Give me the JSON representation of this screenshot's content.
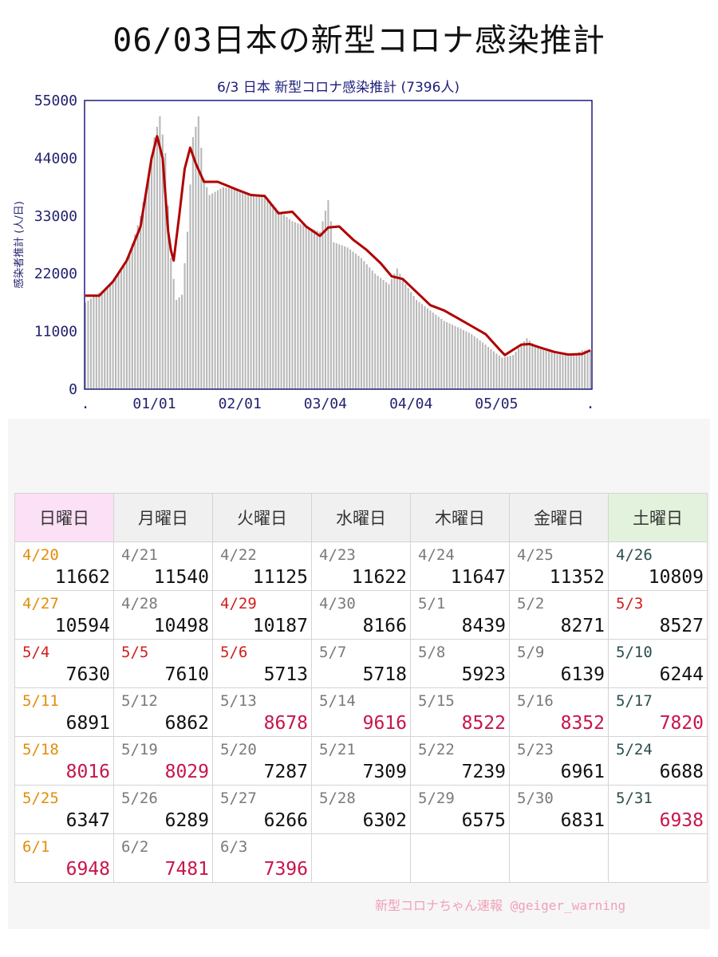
{
  "main_title": "06/03日本の新型コロナ感染推計",
  "chart_data": {
    "type": "bar",
    "title": "6/3 日本 新型コロナ感染推計 (7396人)",
    "xlabel": "",
    "ylabel": "感染者推計 (人/日)",
    "ylim": [
      0,
      55000
    ],
    "y_ticks": [
      0,
      11000,
      22000,
      33000,
      44000,
      55000
    ],
    "x_ticks": [
      {
        "label": ".",
        "day": 0
      },
      {
        "label": "01/01",
        "day": 25
      },
      {
        "label": "02/01",
        "day": 56
      },
      {
        "label": "03/04",
        "day": 87
      },
      {
        "label": "04/04",
        "day": 118
      },
      {
        "label": "05/05",
        "day": 149
      },
      {
        "label": ".",
        "day": 183
      }
    ],
    "grid": false,
    "colors": {
      "bars": "#b8b8b8",
      "line": "#b00000",
      "frame": "#1d1d7a"
    },
    "series": [
      {
        "name": "",
        "type": "bar",
        "points": [
          [
            0,
            16500
          ],
          [
            4,
            18000
          ],
          [
            8,
            19500
          ],
          [
            12,
            22000
          ],
          [
            16,
            26000
          ],
          [
            20,
            33000
          ],
          [
            23,
            41000
          ],
          [
            25,
            48000
          ],
          [
            27,
            52000
          ],
          [
            29,
            45000
          ],
          [
            31,
            25000
          ],
          [
            33,
            17000
          ],
          [
            35,
            18000
          ],
          [
            37,
            30000
          ],
          [
            39,
            48000
          ],
          [
            41,
            52000
          ],
          [
            43,
            40000
          ],
          [
            45,
            37000
          ],
          [
            50,
            38500
          ],
          [
            55,
            38000
          ],
          [
            60,
            37000
          ],
          [
            65,
            37000
          ],
          [
            70,
            34000
          ],
          [
            75,
            32000
          ],
          [
            80,
            31000
          ],
          [
            85,
            30000
          ],
          [
            88,
            36000
          ],
          [
            90,
            28000
          ],
          [
            95,
            27000
          ],
          [
            100,
            25000
          ],
          [
            105,
            22000
          ],
          [
            110,
            20000
          ],
          [
            113,
            23000
          ],
          [
            116,
            20000
          ],
          [
            120,
            17000
          ],
          [
            125,
            15000
          ],
          [
            130,
            13000
          ],
          [
            135,
            11800
          ],
          [
            140,
            10500
          ],
          [
            145,
            8500
          ],
          [
            148,
            7200
          ],
          [
            151,
            6000
          ],
          [
            155,
            6500
          ],
          [
            158,
            8500
          ],
          [
            160,
            9700
          ],
          [
            163,
            8300
          ],
          [
            167,
            7600
          ],
          [
            171,
            6700
          ],
          [
            175,
            6300
          ],
          [
            178,
            6800
          ],
          [
            180,
            7400
          ],
          [
            183,
            7396
          ]
        ]
      },
      {
        "name": "",
        "type": "line",
        "points": [
          [
            0,
            17800
          ],
          [
            5,
            17800
          ],
          [
            10,
            20500
          ],
          [
            15,
            24500
          ],
          [
            20,
            31000
          ],
          [
            24,
            44000
          ],
          [
            26,
            48200
          ],
          [
            28,
            44000
          ],
          [
            30,
            30000
          ],
          [
            31,
            26500
          ],
          [
            32,
            24500
          ],
          [
            34,
            33000
          ],
          [
            36,
            42000
          ],
          [
            38,
            46000
          ],
          [
            40,
            43000
          ],
          [
            43,
            39500
          ],
          [
            48,
            39500
          ],
          [
            55,
            38000
          ],
          [
            60,
            37000
          ],
          [
            65,
            36800
          ],
          [
            70,
            33500
          ],
          [
            75,
            33800
          ],
          [
            80,
            31000
          ],
          [
            85,
            29200
          ],
          [
            88,
            30800
          ],
          [
            92,
            31000
          ],
          [
            97,
            28500
          ],
          [
            102,
            26500
          ],
          [
            107,
            24000
          ],
          [
            111,
            21500
          ],
          [
            115,
            21000
          ],
          [
            120,
            18500
          ],
          [
            125,
            16000
          ],
          [
            130,
            15000
          ],
          [
            135,
            13500
          ],
          [
            140,
            12000
          ],
          [
            145,
            10500
          ],
          [
            150,
            7600
          ],
          [
            152,
            6500
          ],
          [
            155,
            7500
          ],
          [
            158,
            8500
          ],
          [
            161,
            8600
          ],
          [
            165,
            7900
          ],
          [
            170,
            7100
          ],
          [
            175,
            6600
          ],
          [
            180,
            6700
          ],
          [
            183,
            7396
          ]
        ]
      }
    ]
  },
  "calendar": {
    "headers": [
      "日曜日",
      "月曜日",
      "火曜日",
      "水曜日",
      "木曜日",
      "金曜日",
      "土曜日"
    ],
    "rows": [
      [
        {
          "date": "4/20",
          "value": "11662",
          "dc": "sun"
        },
        {
          "date": "4/21",
          "value": "11540"
        },
        {
          "date": "4/22",
          "value": "11125"
        },
        {
          "date": "4/23",
          "value": "11622"
        },
        {
          "date": "4/24",
          "value": "11647"
        },
        {
          "date": "4/25",
          "value": "11352"
        },
        {
          "date": "4/26",
          "value": "10809",
          "dc": "sat"
        }
      ],
      [
        {
          "date": "4/27",
          "value": "10594",
          "dc": "sun"
        },
        {
          "date": "4/28",
          "value": "10498"
        },
        {
          "date": "4/29",
          "value": "10187",
          "dc": "hol"
        },
        {
          "date": "4/30",
          "value": "8166"
        },
        {
          "date": "5/1",
          "value": "8439"
        },
        {
          "date": "5/2",
          "value": "8271"
        },
        {
          "date": "5/3",
          "value": "8527",
          "dc": "hol"
        }
      ],
      [
        {
          "date": "5/4",
          "value": "7630",
          "dc": "hol"
        },
        {
          "date": "5/5",
          "value": "7610",
          "dc": "hol"
        },
        {
          "date": "5/6",
          "value": "5713",
          "dc": "hol"
        },
        {
          "date": "5/7",
          "value": "5718"
        },
        {
          "date": "5/8",
          "value": "5923"
        },
        {
          "date": "5/9",
          "value": "6139"
        },
        {
          "date": "5/10",
          "value": "6244",
          "dc": "sat"
        }
      ],
      [
        {
          "date": "5/11",
          "value": "6891",
          "dc": "sun"
        },
        {
          "date": "5/12",
          "value": "6862"
        },
        {
          "date": "5/13",
          "value": "8678",
          "hi": true
        },
        {
          "date": "5/14",
          "value": "9616",
          "hi": true
        },
        {
          "date": "5/15",
          "value": "8522",
          "hi": true
        },
        {
          "date": "5/16",
          "value": "8352",
          "hi": true
        },
        {
          "date": "5/17",
          "value": "7820",
          "dc": "sat",
          "hi": true
        }
      ],
      [
        {
          "date": "5/18",
          "value": "8016",
          "dc": "sun",
          "hi": true
        },
        {
          "date": "5/19",
          "value": "8029",
          "hi": true
        },
        {
          "date": "5/20",
          "value": "7287"
        },
        {
          "date": "5/21",
          "value": "7309"
        },
        {
          "date": "5/22",
          "value": "7239"
        },
        {
          "date": "5/23",
          "value": "6961"
        },
        {
          "date": "5/24",
          "value": "6688",
          "dc": "sat"
        }
      ],
      [
        {
          "date": "5/25",
          "value": "6347",
          "dc": "sun"
        },
        {
          "date": "5/26",
          "value": "6289"
        },
        {
          "date": "5/27",
          "value": "6266"
        },
        {
          "date": "5/28",
          "value": "6302"
        },
        {
          "date": "5/29",
          "value": "6575"
        },
        {
          "date": "5/30",
          "value": "6831"
        },
        {
          "date": "5/31",
          "value": "6938",
          "dc": "sat",
          "hi": true
        }
      ],
      [
        {
          "date": "6/1",
          "value": "6948",
          "dc": "sun",
          "hi": true
        },
        {
          "date": "6/2",
          "value": "7481",
          "hi": true
        },
        {
          "date": "6/3",
          "value": "7396",
          "hi": true
        },
        null,
        null,
        null,
        null
      ]
    ]
  },
  "footer": {
    "credit": "新型コロナちゃん速報  @geiger_warning"
  }
}
